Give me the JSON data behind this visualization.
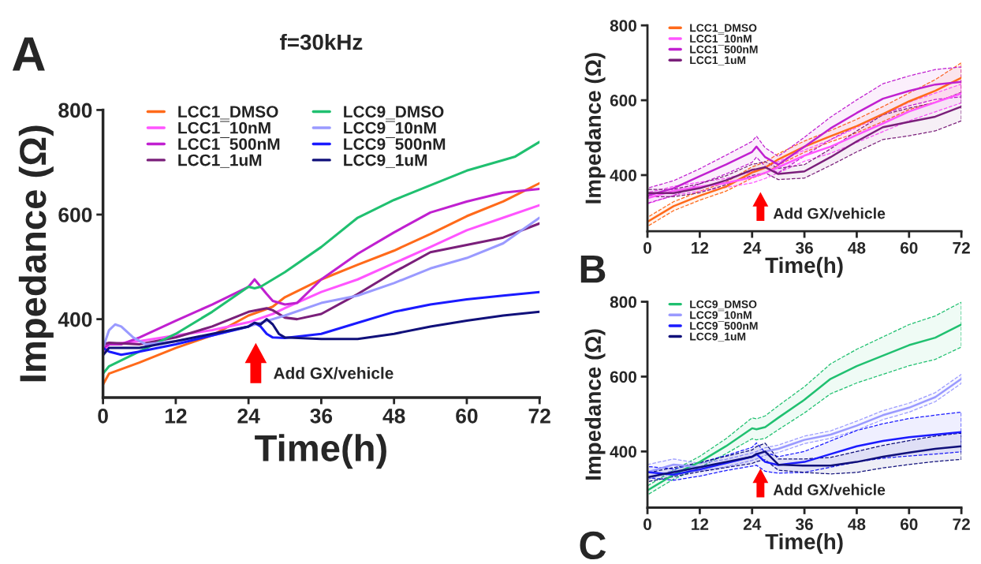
{
  "chart_data": [
    {
      "type": "line",
      "title": "f=30kHz",
      "xlabel": "Time(h)",
      "ylabel": "Impedance (Ω)",
      "xlim": [
        0,
        72
      ],
      "xticks": [
        0,
        12,
        24,
        36,
        48,
        60,
        72
      ],
      "ylim": [
        250,
        800
      ],
      "yticks": [
        400,
        600,
        800
      ],
      "legend": "top left",
      "grid": false,
      "annotations": [
        "A",
        "Add GX/vehicle"
      ],
      "series": [
        {
          "name": "LCC1_DMSO",
          "color": "#ff6a1a",
          "x": [
            0,
            1,
            6,
            12,
            18,
            24,
            26,
            28,
            30,
            36,
            42,
            48,
            54,
            60,
            66,
            72
          ],
          "values": [
            275,
            296,
            317,
            345,
            369,
            407,
            415,
            424,
            442,
            476,
            504,
            531,
            563,
            597,
            625,
            660
          ]
        },
        {
          "name": "LCC1¯10nM",
          "color": "#ff55ff",
          "x": [
            0,
            1,
            6,
            12,
            18,
            24,
            28,
            30,
            36,
            42,
            48,
            54,
            60,
            66,
            72
          ],
          "values": [
            338,
            352,
            358,
            369,
            379,
            394,
            410,
            421,
            452,
            476,
            507,
            538,
            570,
            594,
            618
          ]
        },
        {
          "name": "LCC1¯500nM",
          "color": "#c020d0",
          "x": [
            0,
            1,
            3,
            6,
            12,
            18,
            24,
            25,
            26,
            27,
            28,
            30,
            32,
            36,
            42,
            48,
            54,
            60,
            66,
            72
          ],
          "values": [
            345,
            352,
            352,
            365,
            397,
            428,
            462,
            476,
            462,
            448,
            435,
            428,
            431,
            476,
            525,
            566,
            604,
            625,
            642,
            649
          ]
        },
        {
          "name": "LCC1_1uM",
          "color": "#7a1f7a",
          "x": [
            0,
            1,
            6,
            12,
            18,
            24,
            27,
            28,
            30,
            32,
            36,
            42,
            48,
            54,
            60,
            66,
            72
          ],
          "values": [
            352,
            355,
            352,
            365,
            386,
            414,
            421,
            417,
            403,
            400,
            410,
            448,
            490,
            528,
            542,
            556,
            583
          ]
        },
        {
          "name": "LCC9_DMSO",
          "color": "#20c070",
          "x": [
            0,
            1,
            6,
            12,
            18,
            24,
            25,
            26,
            30,
            36,
            42,
            48,
            54,
            60,
            66,
            68,
            72
          ],
          "values": [
            296,
            310,
            338,
            372,
            414,
            462,
            459,
            462,
            490,
            538,
            594,
            628,
            656,
            684,
            704,
            711,
            739
          ]
        },
        {
          "name": "LCC9¯10nM",
          "color": "#9a9aff",
          "x": [
            0,
            1,
            2,
            3,
            5,
            7,
            12,
            18,
            24,
            30,
            36,
            42,
            48,
            54,
            60,
            66,
            72
          ],
          "values": [
            345,
            379,
            390,
            386,
            365,
            352,
            358,
            369,
            386,
            407,
            431,
            445,
            469,
            497,
            517,
            545,
            594
          ]
        },
        {
          "name": "LCC9¯500nM",
          "color": "#1a1aff",
          "x": [
            0,
            1,
            3,
            6,
            12,
            18,
            24,
            25,
            26,
            27,
            28,
            30,
            36,
            42,
            48,
            54,
            60,
            66,
            72
          ],
          "values": [
            345,
            338,
            332,
            338,
            352,
            369,
            386,
            393,
            386,
            372,
            365,
            364,
            372,
            393,
            414,
            428,
            438,
            445,
            452
          ]
        },
        {
          "name": "LCC9_1uM",
          "color": "#10107a",
          "x": [
            0,
            1,
            6,
            12,
            18,
            24,
            25,
            26,
            27,
            28,
            29,
            30,
            36,
            42,
            48,
            54,
            60,
            66,
            72
          ],
          "values": [
            331,
            345,
            345,
            358,
            372,
            386,
            393,
            390,
            400,
            390,
            372,
            365,
            362,
            362,
            372,
            386,
            397,
            407,
            414
          ]
        }
      ]
    },
    {
      "type": "line",
      "xlabel": "Time(h)",
      "ylabel": "Impedance (Ω)",
      "xlim": [
        0,
        72
      ],
      "xticks": [
        0,
        12,
        24,
        36,
        48,
        60,
        72
      ],
      "ylim": [
        250,
        800
      ],
      "yticks": [
        400,
        600,
        800
      ],
      "legend": "top left",
      "grid": false,
      "annotations": [
        "B",
        "Add GX/vehicle"
      ],
      "x": [
        0,
        6,
        12,
        18,
        24,
        25,
        27,
        30,
        36,
        42,
        48,
        54,
        60,
        66,
        72
      ],
      "series": [
        {
          "name": "LCC1_DMSO",
          "color": "#ff6a1a",
          "values": [
            275,
            317,
            345,
            369,
            407,
            411,
            420,
            442,
            476,
            504,
            531,
            563,
            597,
            625,
            660
          ],
          "lower": [
            263,
            305,
            333,
            357,
            392,
            396,
            405,
            427,
            461,
            489,
            513,
            543,
            575,
            595,
            620
          ],
          "upper": [
            287,
            329,
            357,
            381,
            422,
            426,
            435,
            457,
            491,
            519,
            549,
            583,
            619,
            655,
            700
          ]
        },
        {
          "name": "LCC1¯10nM",
          "color": "#ff55ff",
          "values": [
            338,
            358,
            369,
            379,
            394,
            398,
            406,
            421,
            452,
            476,
            507,
            538,
            570,
            594,
            618
          ],
          "lower": [
            323,
            346,
            357,
            367,
            379,
            383,
            391,
            406,
            437,
            458,
            487,
            516,
            545,
            569,
            593
          ],
          "upper": [
            353,
            370,
            381,
            391,
            409,
            413,
            421,
            436,
            467,
            494,
            527,
            560,
            595,
            619,
            643
          ]
        },
        {
          "name": "LCC1¯500nM",
          "color": "#c020d0",
          "values": [
            345,
            365,
            397,
            428,
            462,
            476,
            448,
            428,
            476,
            525,
            566,
            604,
            625,
            642,
            649
          ],
          "lower": [
            325,
            345,
            377,
            403,
            434,
            448,
            423,
            406,
            451,
            495,
            531,
            564,
            585,
            602,
            609
          ],
          "upper": [
            365,
            385,
            417,
            453,
            490,
            504,
            473,
            450,
            501,
            555,
            601,
            644,
            665,
            682,
            689
          ]
        },
        {
          "name": "LCC1_1uM",
          "color": "#7a1f7a",
          "values": [
            352,
            352,
            365,
            386,
            414,
            416,
            421,
            403,
            410,
            448,
            490,
            528,
            542,
            556,
            583
          ],
          "lower": [
            342,
            342,
            353,
            374,
            399,
            401,
            406,
            388,
            392,
            426,
            462,
            495,
            505,
            518,
            545
          ],
          "upper": [
            362,
            362,
            377,
            398,
            429,
            431,
            436,
            418,
            428,
            470,
            518,
            561,
            579,
            594,
            621
          ]
        }
      ]
    },
    {
      "type": "line",
      "xlabel": "Time(h)",
      "ylabel": "Impedance (Ω)",
      "xlim": [
        0,
        72
      ],
      "xticks": [
        0,
        12,
        24,
        36,
        48,
        60,
        72
      ],
      "ylim": [
        250,
        800
      ],
      "yticks": [
        400,
        600,
        800
      ],
      "legend": "top left",
      "grid": false,
      "annotations": [
        "C",
        "Add GX/vehicle"
      ],
      "x": [
        0,
        6,
        12,
        18,
        24,
        25,
        27,
        30,
        36,
        42,
        48,
        54,
        60,
        66,
        72
      ],
      "series": [
        {
          "name": "LCC9_DMSO",
          "color": "#20c070",
          "values": [
            296,
            338,
            372,
            414,
            462,
            459,
            465,
            490,
            538,
            594,
            628,
            656,
            684,
            704,
            739
          ],
          "lower": [
            284,
            326,
            357,
            394,
            434,
            431,
            435,
            458,
            503,
            554,
            583,
            606,
            629,
            646,
            679
          ],
          "upper": [
            308,
            350,
            387,
            434,
            490,
            487,
            495,
            522,
            573,
            634,
            673,
            706,
            739,
            762,
            799
          ]
        },
        {
          "name": "LCC9¯10nM",
          "color": "#9a9aff",
          "values": [
            345,
            365,
            358,
            369,
            386,
            390,
            400,
            407,
            431,
            445,
            469,
            497,
            517,
            545,
            594
          ],
          "lower": [
            325,
            350,
            348,
            359,
            376,
            380,
            390,
            397,
            421,
            435,
            457,
            485,
            505,
            533,
            582
          ],
          "upper": [
            365,
            380,
            368,
            379,
            396,
            400,
            410,
            417,
            441,
            455,
            481,
            509,
            529,
            557,
            606
          ]
        },
        {
          "name": "LCC9¯500nM",
          "color": "#1a1aff",
          "values": [
            345,
            338,
            352,
            369,
            386,
            393,
            372,
            364,
            372,
            393,
            414,
            428,
            438,
            445,
            452
          ],
          "lower": [
            330,
            323,
            334,
            349,
            361,
            363,
            347,
            342,
            344,
            358,
            372,
            382,
            388,
            393,
            399
          ],
          "upper": [
            360,
            353,
            370,
            389,
            411,
            423,
            397,
            386,
            400,
            428,
            456,
            474,
            488,
            497,
            505
          ]
        },
        {
          "name": "LCC9_1uM",
          "color": "#10107a",
          "values": [
            331,
            345,
            358,
            372,
            386,
            393,
            400,
            365,
            362,
            362,
            372,
            386,
            397,
            407,
            414
          ],
          "lower": [
            319,
            333,
            346,
            357,
            368,
            373,
            378,
            350,
            344,
            340,
            344,
            356,
            365,
            373,
            379
          ],
          "upper": [
            343,
            357,
            370,
            387,
            404,
            413,
            422,
            380,
            380,
            384,
            400,
            416,
            429,
            441,
            449
          ]
        }
      ]
    }
  ]
}
